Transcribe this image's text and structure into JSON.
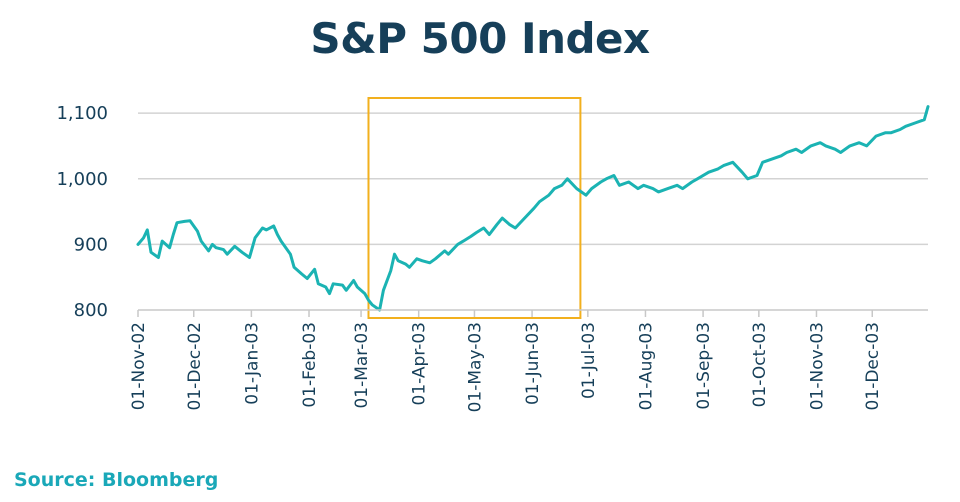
{
  "chart_data": {
    "type": "line",
    "title": "S&P 500 Index",
    "xlabel": "",
    "ylabel": "",
    "x_start": "2002-11-01",
    "x_end": "2003-12-31",
    "ylim": [
      800,
      1120
    ],
    "yticks": [
      800,
      900,
      1000,
      1100
    ],
    "ytick_labels": [
      "800",
      "900",
      "1,000",
      "1,100"
    ],
    "xtick_labels": [
      "01-Nov-02",
      "01-Dec-02",
      "01-Jan-03",
      "01-Feb-03",
      "01-Mar-03",
      "01-Apr-03",
      "01-May-03",
      "01-Jun-03",
      "01-Jul-03",
      "01-Aug-03",
      "01-Sep-03",
      "01-Oct-03",
      "01-Nov-03",
      "01-Dec-03"
    ],
    "grid": true,
    "line_color": "#1bb3b3",
    "highlight": {
      "x_start": "2003-03-05",
      "x_end": "2003-06-27",
      "color": "#f2b01e"
    },
    "series": [
      {
        "x": [
          "2002-11-01",
          "2002-11-04",
          "2002-11-06",
          "2002-11-08",
          "2002-11-12",
          "2002-11-14",
          "2002-11-18",
          "2002-11-20",
          "2002-11-22",
          "2002-11-26",
          "2002-11-29",
          "2002-12-03",
          "2002-12-05",
          "2002-12-09",
          "2002-12-11",
          "2002-12-13",
          "2002-12-17",
          "2002-12-19",
          "2002-12-23",
          "2002-12-27",
          "2002-12-31",
          "2003-01-03",
          "2003-01-07",
          "2003-01-09",
          "2003-01-13",
          "2003-01-15",
          "2003-01-17",
          "2003-01-22",
          "2003-01-24",
          "2003-01-28",
          "2003-01-31",
          "2003-02-04",
          "2003-02-06",
          "2003-02-10",
          "2003-02-12",
          "2003-02-14",
          "2003-02-19",
          "2003-02-21",
          "2003-02-25",
          "2003-02-27",
          "2003-03-03",
          "2003-03-05",
          "2003-03-07",
          "2003-03-11",
          "2003-03-13",
          "2003-03-17",
          "2003-03-19",
          "2003-03-21",
          "2003-03-25",
          "2003-03-27",
          "2003-03-31",
          "2003-04-03",
          "2003-04-07",
          "2003-04-10",
          "2003-04-15",
          "2003-04-17",
          "2003-04-22",
          "2003-04-25",
          "2003-04-29",
          "2003-05-02",
          "2003-05-06",
          "2003-05-09",
          "2003-05-13",
          "2003-05-16",
          "2003-05-20",
          "2003-05-23",
          "2003-05-28",
          "2003-06-02",
          "2003-06-05",
          "2003-06-10",
          "2003-06-13",
          "2003-06-17",
          "2003-06-20",
          "2003-06-25",
          "2003-06-30",
          "2003-07-03",
          "2003-07-08",
          "2003-07-11",
          "2003-07-15",
          "2003-07-18",
          "2003-07-23",
          "2003-07-28",
          "2003-07-31",
          "2003-08-05",
          "2003-08-08",
          "2003-08-13",
          "2003-08-18",
          "2003-08-21",
          "2003-08-26",
          "2003-08-29",
          "2003-09-04",
          "2003-09-09",
          "2003-09-12",
          "2003-09-17",
          "2003-09-22",
          "2003-09-25",
          "2003-09-30",
          "2003-10-03",
          "2003-10-08",
          "2003-10-13",
          "2003-10-16",
          "2003-10-21",
          "2003-10-24",
          "2003-10-29",
          "2003-11-03",
          "2003-11-06",
          "2003-11-11",
          "2003-11-14",
          "2003-11-19",
          "2003-11-24",
          "2003-11-28",
          "2003-12-03",
          "2003-12-08",
          "2003-12-11",
          "2003-12-16",
          "2003-12-19",
          "2003-12-24",
          "2003-12-29",
          "2003-12-31"
        ],
        "values": [
          900,
          910,
          922,
          888,
          880,
          905,
          895,
          915,
          933,
          935,
          936,
          920,
          905,
          890,
          900,
          895,
          892,
          885,
          897,
          888,
          880,
          910,
          925,
          922,
          928,
          915,
          905,
          885,
          865,
          855,
          848,
          862,
          840,
          835,
          825,
          840,
          838,
          830,
          845,
          835,
          825,
          815,
          808,
          800,
          830,
          860,
          885,
          875,
          870,
          865,
          878,
          875,
          872,
          878,
          890,
          885,
          900,
          905,
          912,
          918,
          925,
          915,
          930,
          940,
          930,
          925,
          940,
          955,
          965,
          975,
          985,
          990,
          1000,
          985,
          975,
          985,
          995,
          1000,
          1005,
          990,
          995,
          985,
          990,
          985,
          980,
          985,
          990,
          985,
          995,
          1000,
          1010,
          1015,
          1020,
          1025,
          1010,
          1000,
          1005,
          1025,
          1030,
          1035,
          1040,
          1045,
          1040,
          1050,
          1055,
          1050,
          1045,
          1040,
          1050,
          1055,
          1050,
          1065,
          1070,
          1070,
          1075,
          1080,
          1085,
          1090,
          1110
        ]
      }
    ]
  },
  "title": "S&P 500 Index",
  "source": "Source: Bloomberg"
}
